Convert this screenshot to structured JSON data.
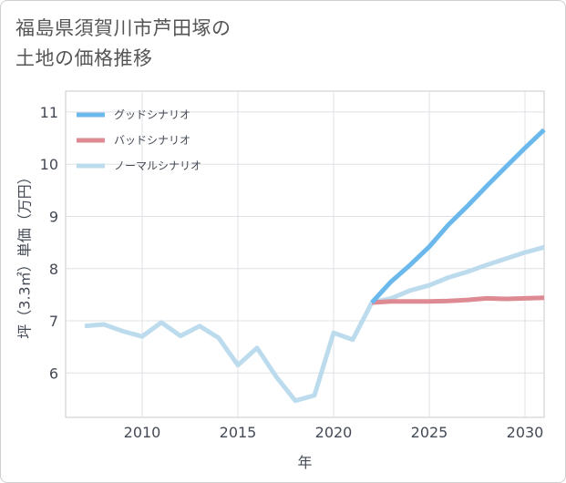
{
  "title_lines": [
    "福島県須賀川市芦田塚の",
    "土地の価格推移"
  ],
  "chart_data": {
    "type": "line",
    "title": "福島県須賀川市芦田塚の土地の価格推移",
    "xlabel": "年",
    "ylabel": "坪（3.3㎡）単価（万円）",
    "xlim": [
      2006,
      2031
    ],
    "ylim": [
      5.15,
      11.4
    ],
    "xticks": [
      2010,
      2015,
      2020,
      2025,
      2030
    ],
    "yticks": [
      6,
      7,
      8,
      9,
      10,
      11
    ],
    "grid": true,
    "legend_position": "top-left",
    "series": [
      {
        "name": "グッドシナリオ",
        "color": "#6bb9ec",
        "x": [
          2022,
          2023,
          2024,
          2025,
          2026,
          2027,
          2028,
          2029,
          2030,
          2031
        ],
        "y": [
          7.35,
          7.75,
          8.07,
          8.42,
          8.84,
          9.2,
          9.58,
          9.95,
          10.31,
          10.66
        ]
      },
      {
        "name": "バッドシナリオ",
        "color": "#dd8a92",
        "x": [
          2022,
          2023,
          2024,
          2025,
          2026,
          2027,
          2028,
          2029,
          2030,
          2031
        ],
        "y": [
          7.35,
          7.37,
          7.37,
          7.37,
          7.38,
          7.4,
          7.43,
          7.42,
          7.43,
          7.44
        ]
      },
      {
        "name": "ノーマルシナリオ",
        "color": "#bcdcee",
        "x": [
          2007,
          2008,
          2009,
          2010,
          2011,
          2012,
          2013,
          2014,
          2015,
          2016,
          2017,
          2018,
          2019,
          2020,
          2021,
          2022,
          2023,
          2024,
          2025,
          2026,
          2027,
          2028,
          2029,
          2030,
          2031
        ],
        "y": [
          6.9,
          6.93,
          6.8,
          6.7,
          6.97,
          6.71,
          6.9,
          6.67,
          6.15,
          6.48,
          5.93,
          5.47,
          5.57,
          6.77,
          6.64,
          7.35,
          7.43,
          7.58,
          7.68,
          7.83,
          7.94,
          8.07,
          8.19,
          8.31,
          8.41
        ]
      }
    ]
  }
}
